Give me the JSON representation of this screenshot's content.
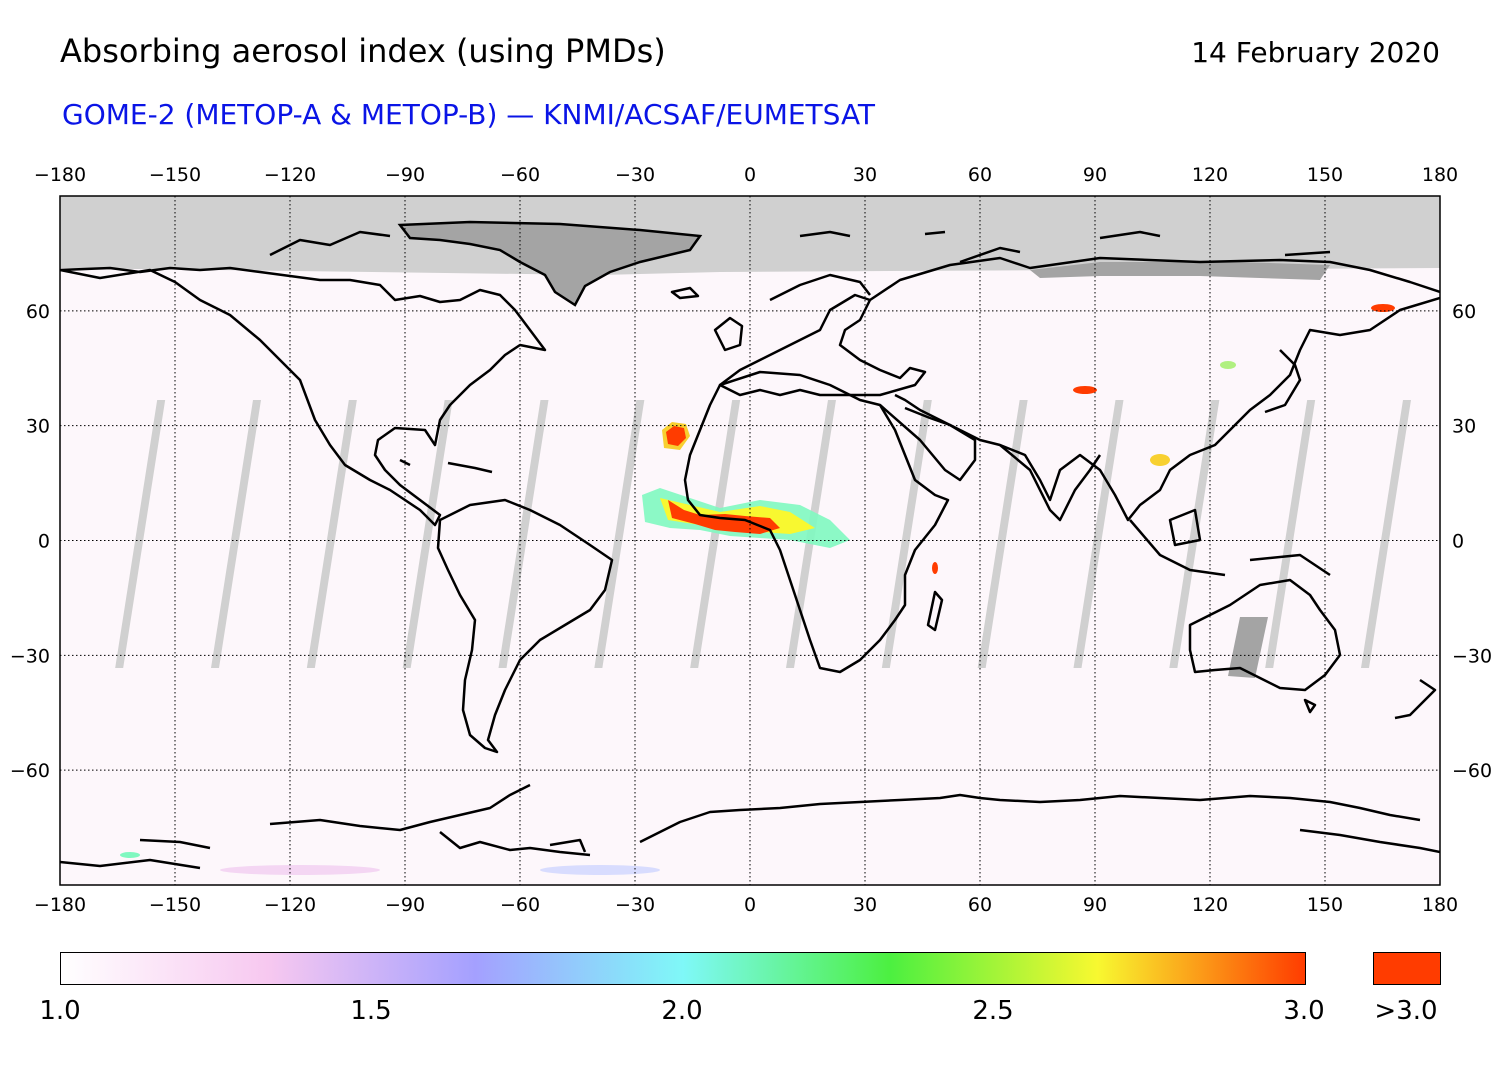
{
  "header": {
    "title": "Absorbing aerosol index (using PMDs)",
    "date": "14 February 2020",
    "subtitle": "GOME-2 (METOP-A & METOP-B) — KNMI/ACSAF/EUMETSAT"
  },
  "map": {
    "lon_range": [
      -180,
      180
    ],
    "lat_range": [
      -90,
      90
    ],
    "lon_ticks": [
      "−180",
      "−150",
      "−120",
      "−90",
      "−60",
      "−30",
      "0",
      "30",
      "60",
      "90",
      "120",
      "150",
      "180"
    ],
    "lat_ticks": [
      "60",
      "30",
      "0",
      "−30",
      "−60"
    ],
    "lon_tick_values": [
      -180,
      -150,
      -120,
      -90,
      -60,
      -30,
      0,
      30,
      60,
      90,
      120,
      150,
      180
    ],
    "lat_tick_values": [
      60,
      30,
      0,
      -30,
      -60
    ],
    "grid": "dotted",
    "colors": {
      "no_data": "#d0d0d0",
      "no_data_dark": "#a8a8a8",
      "coastline": "#000000",
      "high": "#ff3c00"
    },
    "aerosol_plumes": [
      {
        "name": "west-africa-plume",
        "lon": [
          -30,
          30
        ],
        "lat": [
          -5,
          12
        ],
        "max_value": ">3.0"
      },
      {
        "name": "sahara-plume",
        "lon": [
          -25,
          -15
        ],
        "lat": [
          20,
          30
        ],
        "max_value": ">3.0"
      }
    ]
  },
  "colorbar": {
    "labels": [
      "1.0",
      "1.5",
      "2.0",
      "2.5",
      "3.0"
    ],
    "label_values": [
      1.0,
      1.5,
      2.0,
      2.5,
      3.0
    ],
    "over_label": ">3.0",
    "range": [
      1.0,
      3.0
    ],
    "gradient": [
      "#ffffff",
      "#f7c8f0",
      "#a4a0ff",
      "#7ff8f8",
      "#4cf040",
      "#f8f830",
      "#ff3c00"
    ],
    "over_color": "#ff3c00"
  }
}
